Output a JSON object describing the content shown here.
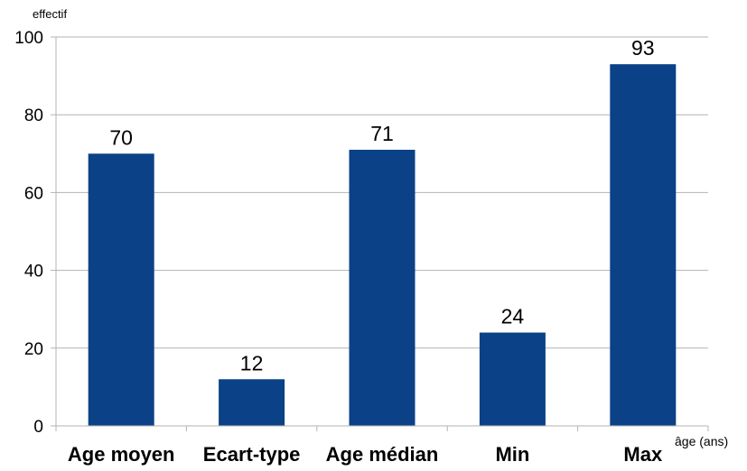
{
  "chart_data": {
    "type": "bar",
    "title": "",
    "ylabel": "effectif",
    "xlabel": "âge (ans)",
    "categories": [
      "Age moyen",
      "Ecart-type",
      "Age médian",
      "Min",
      "Max"
    ],
    "values": [
      70,
      12,
      71,
      24,
      93
    ],
    "data_labels": [
      "70",
      "12",
      "71",
      "24",
      "93"
    ],
    "yticks": [
      0,
      20,
      40,
      60,
      80,
      100
    ],
    "ytick_labels": [
      "0",
      "20",
      "40",
      "60",
      "80",
      "100"
    ],
    "ylim": [
      0,
      100
    ],
    "grid": "horizontal",
    "legend": "none",
    "colors": {
      "bar": "#0b4187",
      "grid": "#b3b3b3",
      "axis": "#b3b3b3",
      "text": "#000000"
    }
  }
}
